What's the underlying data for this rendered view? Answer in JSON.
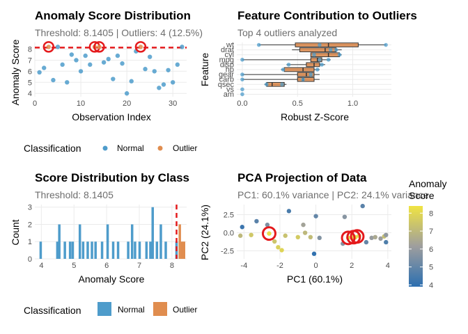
{
  "colors": {
    "normal": "#4e9ccb",
    "outlier": "#e08d4f",
    "threshold": "#e41a1c",
    "grid": "#ebebeb",
    "gradient_low": "#2c6fb0",
    "gradient_mid": "#9e9e9e",
    "gradient_high": "#f0e442"
  },
  "legend_class": {
    "title": "Classification",
    "normal": "Normal",
    "outlier": "Outlier"
  },
  "legend_score": {
    "title_line1": "Anomaly",
    "title_line2": "Score",
    "ticks": [
      "8",
      "7",
      "6",
      "5",
      "4"
    ]
  },
  "chart_data": [
    {
      "type": "scatter",
      "title": "Anomaly Score Distribution",
      "subtitle": "Threshold: 8.1405 | Outliers: 4 (12.5%)",
      "xlabel": "Observation Index",
      "ylabel": "Anomaly Score",
      "xlim": [
        0,
        33
      ],
      "ylim": [
        3.7,
        8.6
      ],
      "xticks": [
        0,
        10,
        20,
        30
      ],
      "yticks": [
        4,
        5,
        6,
        7,
        8
      ],
      "xtick_labels": [
        "0",
        "10",
        "20",
        "30"
      ],
      "ytick_labels": [
        "4",
        "5",
        "6",
        "7",
        "8"
      ],
      "threshold": 8.1405,
      "points": [
        {
          "x": 1,
          "y": 5.9,
          "c": "normal"
        },
        {
          "x": 2,
          "y": 6.3,
          "c": "normal"
        },
        {
          "x": 3,
          "y": 8.2,
          "c": "outlier"
        },
        {
          "x": 4,
          "y": 5.2,
          "c": "normal"
        },
        {
          "x": 5,
          "y": 8.2,
          "c": "normal"
        },
        {
          "x": 6,
          "y": 6.6,
          "c": "normal"
        },
        {
          "x": 7,
          "y": 5.0,
          "c": "normal"
        },
        {
          "x": 8,
          "y": 7.5,
          "c": "normal"
        },
        {
          "x": 9,
          "y": 7.0,
          "c": "normal"
        },
        {
          "x": 10,
          "y": 6.0,
          "c": "normal"
        },
        {
          "x": 11,
          "y": 7.4,
          "c": "normal"
        },
        {
          "x": 12,
          "y": 6.6,
          "c": "normal"
        },
        {
          "x": 13,
          "y": 8.2,
          "c": "outlier"
        },
        {
          "x": 14,
          "y": 8.2,
          "c": "outlier"
        },
        {
          "x": 15,
          "y": 6.8,
          "c": "normal"
        },
        {
          "x": 16,
          "y": 7.1,
          "c": "normal"
        },
        {
          "x": 17,
          "y": 5.3,
          "c": "normal"
        },
        {
          "x": 18,
          "y": 7.4,
          "c": "normal"
        },
        {
          "x": 19,
          "y": 6.7,
          "c": "normal"
        },
        {
          "x": 20,
          "y": 4.0,
          "c": "normal"
        },
        {
          "x": 21,
          "y": 5.1,
          "c": "normal"
        },
        {
          "x": 22,
          "y": 7.8,
          "c": "normal"
        },
        {
          "x": 23,
          "y": 8.2,
          "c": "outlier"
        },
        {
          "x": 24,
          "y": 6.2,
          "c": "normal"
        },
        {
          "x": 25,
          "y": 7.3,
          "c": "normal"
        },
        {
          "x": 26,
          "y": 6.0,
          "c": "normal"
        },
        {
          "x": 27,
          "y": 4.5,
          "c": "normal"
        },
        {
          "x": 28,
          "y": 4.8,
          "c": "normal"
        },
        {
          "x": 29,
          "y": 6.1,
          "c": "normal"
        },
        {
          "x": 30,
          "y": 5.0,
          "c": "normal"
        },
        {
          "x": 31,
          "y": 6.6,
          "c": "normal"
        },
        {
          "x": 32,
          "y": 8.2,
          "c": "normal"
        }
      ]
    },
    {
      "type": "box",
      "title": "Feature Contribution to Outliers",
      "subtitle": "Top 4 outliers analyzed",
      "xlabel": "Robust Z-Score",
      "ylabel": "Feature",
      "xlim": [
        -0.05,
        1.35
      ],
      "xticks": [
        0,
        0.5,
        1.0
      ],
      "xtick_labels": [
        "0.0",
        "0.5",
        "1.0"
      ],
      "features": [
        {
          "name": "wt",
          "q1": 0.48,
          "med": 0.78,
          "q3": 1.05,
          "min": 0.15,
          "max": 1.3,
          "pts": [
            0.15,
            0.7,
            1.3
          ]
        },
        {
          "name": "drat",
          "q1": 0.52,
          "med": 0.75,
          "q3": 0.85,
          "min": 0.45,
          "max": 0.9,
          "pts": [
            0.8,
            0.85
          ]
        },
        {
          "name": "cyl",
          "q1": 0.62,
          "med": 0.78,
          "q3": 0.88,
          "min": 0.62,
          "max": 0.9,
          "pts": [
            0.65,
            0.88
          ]
        },
        {
          "name": "mpg",
          "q1": 0.62,
          "med": 0.68,
          "q3": 0.72,
          "min": 0.0,
          "max": 0.8,
          "pts": [
            0.0,
            0.7,
            0.78
          ]
        },
        {
          "name": "disp",
          "q1": 0.58,
          "med": 0.65,
          "q3": 0.7,
          "min": 0.4,
          "max": 0.75,
          "pts": [
            0.42,
            0.72
          ]
        },
        {
          "name": "hp",
          "q1": 0.38,
          "med": 0.55,
          "q3": 0.65,
          "min": 0.35,
          "max": 0.7,
          "pts": [
            0.37,
            0.68
          ]
        },
        {
          "name": "gear",
          "q1": 0.5,
          "med": 0.58,
          "q3": 0.65,
          "min": 0.0,
          "max": 0.7,
          "pts": [
            0.0,
            0.62
          ]
        },
        {
          "name": "carb",
          "q1": 0.5,
          "med": 0.55,
          "q3": 0.65,
          "min": 0.0,
          "max": 0.7,
          "pts": [
            0.0,
            0.55
          ]
        },
        {
          "name": "qsec",
          "q1": 0.22,
          "med": 0.27,
          "q3": 0.38,
          "min": 0.2,
          "max": 0.4,
          "pts": [
            0.22,
            0.36
          ]
        },
        {
          "name": "vs",
          "q1": 0,
          "med": 0,
          "q3": 0,
          "min": 0,
          "max": 0,
          "pts": [
            0.0
          ]
        },
        {
          "name": "am",
          "q1": 0,
          "med": 0,
          "q3": 0,
          "min": 0,
          "max": 0,
          "pts": [
            0.0
          ]
        }
      ]
    },
    {
      "type": "histogram",
      "title": "Score Distribution by Class",
      "subtitle": "Threshold: 8.1405",
      "xlabel": "Anomaly Score",
      "ylabel": "Count",
      "xlim": [
        3.8,
        8.45
      ],
      "ylim": [
        0,
        3.15
      ],
      "xticks": [
        4,
        5,
        6,
        7,
        8
      ],
      "xtick_labels": [
        "4",
        "5",
        "6",
        "7",
        "8"
      ],
      "yticks": [
        0,
        1,
        2,
        3
      ],
      "ytick_labels": [
        "0",
        "1",
        "2",
        "3"
      ],
      "threshold": 8.1405,
      "bars": [
        {
          "x": 3.98,
          "count": 1,
          "c": "normal"
        },
        {
          "x": 4.49,
          "count": 1,
          "c": "normal"
        },
        {
          "x": 4.55,
          "count": 2,
          "c": "normal"
        },
        {
          "x": 4.72,
          "count": 1,
          "c": "normal"
        },
        {
          "x": 4.88,
          "count": 1,
          "c": "normal"
        },
        {
          "x": 4.96,
          "count": 1,
          "c": "normal"
        },
        {
          "x": 5.18,
          "count": 2,
          "c": "normal"
        },
        {
          "x": 5.28,
          "count": 1,
          "c": "normal"
        },
        {
          "x": 5.42,
          "count": 1,
          "c": "normal"
        },
        {
          "x": 5.55,
          "count": 1,
          "c": "normal"
        },
        {
          "x": 5.66,
          "count": 1,
          "c": "normal"
        },
        {
          "x": 5.86,
          "count": 1,
          "c": "normal"
        },
        {
          "x": 6.03,
          "count": 2,
          "c": "normal"
        },
        {
          "x": 6.2,
          "count": 1,
          "c": "normal"
        },
        {
          "x": 6.35,
          "count": 1,
          "c": "normal"
        },
        {
          "x": 6.66,
          "count": 1,
          "c": "normal"
        },
        {
          "x": 6.78,
          "count": 2,
          "c": "normal"
        },
        {
          "x": 6.87,
          "count": 1,
          "c": "normal"
        },
        {
          "x": 7.01,
          "count": 1,
          "c": "normal"
        },
        {
          "x": 7.22,
          "count": 1,
          "c": "normal"
        },
        {
          "x": 7.34,
          "count": 1,
          "c": "normal"
        },
        {
          "x": 7.41,
          "count": 3,
          "c": "normal"
        },
        {
          "x": 7.54,
          "count": 1,
          "c": "normal"
        },
        {
          "x": 7.66,
          "count": 2,
          "c": "normal"
        },
        {
          "x": 7.81,
          "count": 1,
          "c": "normal"
        },
        {
          "x": 8.14,
          "count": 1,
          "c": "normal"
        },
        {
          "x": 8.24,
          "count": 2,
          "c": "outlier"
        },
        {
          "x": 8.31,
          "count": 1,
          "c": "outlier"
        },
        {
          "x": 8.37,
          "count": 1,
          "c": "outlier"
        }
      ]
    },
    {
      "type": "scatter",
      "title": "PCA Projection of Data",
      "subtitle": "PC1: 60.1% variance | PC2: 24.1% variance",
      "xlabel": "PC1 (60.1%)",
      "ylabel": "PC2 (24.1%)",
      "xlim": [
        -4.4,
        4.2
      ],
      "ylim": [
        -3.6,
        3.9
      ],
      "xticks": [
        -4,
        -2,
        0,
        2,
        4
      ],
      "xtick_labels": [
        "-4",
        "-2",
        "0",
        "2",
        "4"
      ],
      "yticks": [
        2.5,
        0.0,
        -2.5
      ],
      "ytick_labels": [
        "2.5",
        "0.0",
        "-2.5"
      ],
      "points": [
        {
          "x": -4.1,
          "y": 0.8,
          "s": 4.2
        },
        {
          "x": -4.2,
          "y": -0.4,
          "s": 7.0
        },
        {
          "x": -3.6,
          "y": -0.3,
          "s": 7.5
        },
        {
          "x": -3.3,
          "y": 1.6,
          "s": 4.8
        },
        {
          "x": -2.7,
          "y": 1.1,
          "s": 5.5
        },
        {
          "x": -2.6,
          "y": -0.1,
          "s": 8.2
        },
        {
          "x": -2.3,
          "y": -1.2,
          "s": 7.4
        },
        {
          "x": -2.1,
          "y": -2.0,
          "s": 7.8
        },
        {
          "x": -1.9,
          "y": -2.4,
          "s": 7.9
        },
        {
          "x": -1.5,
          "y": 3.0,
          "s": 4.5
        },
        {
          "x": -1.0,
          "y": -0.6,
          "s": 7.6
        },
        {
          "x": -1.7,
          "y": -0.4,
          "s": 7.3
        },
        {
          "x": -0.7,
          "y": 1.1,
          "s": 6.3
        },
        {
          "x": -0.6,
          "y": 0.0,
          "s": 7.0
        },
        {
          "x": -0.3,
          "y": -0.6,
          "s": 7.1
        },
        {
          "x": 0.0,
          "y": 2.3,
          "s": 5.0
        },
        {
          "x": 0.2,
          "y": -0.7,
          "s": 5.6
        },
        {
          "x": -0.1,
          "y": -2.9,
          "s": 4.0
        },
        {
          "x": 1.5,
          "y": -1.5,
          "s": 5.6
        },
        {
          "x": 1.6,
          "y": 2.2,
          "s": 5.7
        },
        {
          "x": 1.8,
          "y": -0.7,
          "s": 8.2
        },
        {
          "x": 2.1,
          "y": -0.6,
          "s": 8.2
        },
        {
          "x": 2.2,
          "y": -0.6,
          "s": 8.2
        },
        {
          "x": 2.4,
          "y": -0.4,
          "s": 7.9
        },
        {
          "x": 2.6,
          "y": 3.7,
          "s": 4.8
        },
        {
          "x": 2.8,
          "y": -1.3,
          "s": 5.0
        },
        {
          "x": 3.1,
          "y": -0.7,
          "s": 6.0
        },
        {
          "x": 3.6,
          "y": -0.8,
          "s": 6.1
        },
        {
          "x": 3.8,
          "y": -0.5,
          "s": 7.2
        },
        {
          "x": 3.9,
          "y": -1.3,
          "s": 4.6
        },
        {
          "x": 3.9,
          "y": -0.3,
          "s": 5.9
        },
        {
          "x": 3.3,
          "y": -0.6,
          "s": 6.5
        }
      ],
      "highlighted": [
        {
          "x": -2.6,
          "y": -0.1
        },
        {
          "x": 1.8,
          "y": -0.7
        },
        {
          "x": 2.1,
          "y": -0.6
        },
        {
          "x": 2.3,
          "y": -0.5
        }
      ],
      "color_range": [
        3.9,
        8.4
      ]
    }
  ]
}
